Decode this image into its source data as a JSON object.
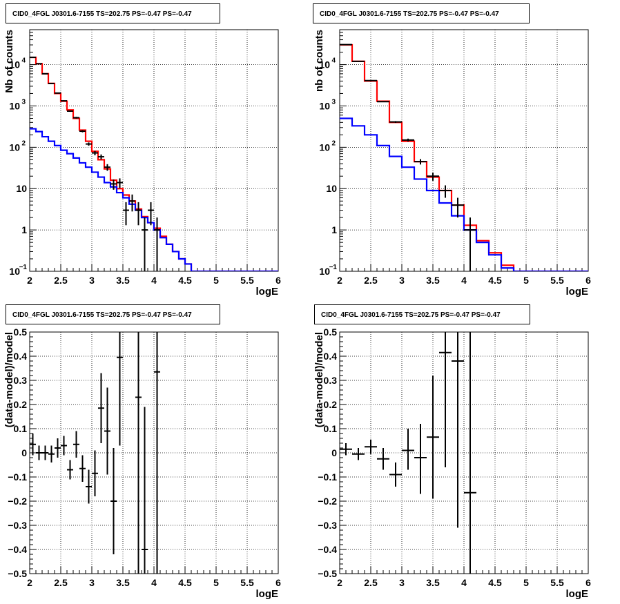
{
  "chart_data": [
    {
      "type": "histogram-step",
      "title": "CID0_4FGL J0301.6-7155 TS=202.75 PS=-0.47 PS=-0.47",
      "xlabel": "logE",
      "ylabel": "Nb of counts",
      "xlim": [
        2,
        6
      ],
      "ylim": [
        0.1,
        70000
      ],
      "yscale": "log",
      "grid": true,
      "x_ticks": [
        "2",
        "2.5",
        "3",
        "3.5",
        "4",
        "4.5",
        "5",
        "5.5",
        "6"
      ],
      "y_ticks": [
        {
          "value": 0.1,
          "label": "10",
          "sup": "−1"
        },
        {
          "value": 1,
          "label": "1",
          "sup": ""
        },
        {
          "value": 10,
          "label": "10",
          "sup": ""
        },
        {
          "value": 100,
          "label": "10",
          "sup": "2"
        },
        {
          "value": 1000,
          "label": "10",
          "sup": "3"
        },
        {
          "value": 10000,
          "label": "10",
          "sup": "4"
        }
      ],
      "bin_edges": [
        2.0,
        2.1,
        2.2,
        2.3,
        2.4,
        2.5,
        2.6,
        2.7,
        2.8,
        2.9,
        3.0,
        3.1,
        3.2,
        3.3,
        3.4,
        3.5,
        3.6,
        3.7,
        3.8,
        3.9,
        4.0,
        4.1,
        4.2,
        4.3,
        4.4,
        4.5,
        4.6,
        4.7,
        4.8,
        4.9,
        5.0,
        5.1,
        5.2,
        5.3,
        5.4,
        5.5,
        5.6,
        5.7,
        5.8,
        5.9,
        6.0
      ],
      "series": [
        {
          "name": "",
          "color": "#ff0000",
          "values": [
            15000,
            10500,
            6000,
            3500,
            2000,
            1300,
            800,
            500,
            260,
            140,
            80,
            50,
            30,
            16,
            10,
            7,
            5,
            3.2,
            2.1,
            1.5,
            1.1,
            0.7,
            0.45,
            0.3,
            0.2,
            0.15,
            0.1,
            0.1,
            0.1,
            0.1,
            0.1,
            0.1,
            0.1,
            0.1,
            0.1,
            0.1,
            0.1,
            0.1,
            0.1,
            0.1
          ]
        },
        {
          "name": "",
          "color": "#0000ff",
          "values": [
            280,
            240,
            180,
            140,
            110,
            85,
            70,
            55,
            42,
            33,
            25,
            19,
            14,
            11,
            8,
            6,
            4.2,
            3.0,
            2.0,
            1.5,
            1.0,
            0.65,
            0.45,
            0.3,
            0.2,
            0.15,
            0.1,
            0.1,
            0.1,
            0.1,
            0.1,
            0.1,
            0.1,
            0.1,
            0.1,
            0.1,
            0.1,
            0.1,
            0.1,
            0.1
          ]
        }
      ],
      "data_points": [
        {
          "x": 2.05,
          "y": 15000,
          "xerr": 0.05,
          "ylo": 14880,
          "yhi": 15120
        },
        {
          "x": 2.15,
          "y": 10500,
          "xerr": 0.05,
          "ylo": 10400,
          "yhi": 10600
        },
        {
          "x": 2.25,
          "y": 6000,
          "xerr": 0.05,
          "ylo": 5920,
          "yhi": 6080
        },
        {
          "x": 2.35,
          "y": 3500,
          "xerr": 0.05,
          "ylo": 3440,
          "yhi": 3560
        },
        {
          "x": 2.45,
          "y": 2050,
          "xerr": 0.05,
          "ylo": 2000,
          "yhi": 2100
        },
        {
          "x": 2.55,
          "y": 1330,
          "xerr": 0.05,
          "ylo": 1290,
          "yhi": 1370
        },
        {
          "x": 2.65,
          "y": 750,
          "xerr": 0.05,
          "ylo": 720,
          "yhi": 780
        },
        {
          "x": 2.75,
          "y": 520,
          "xerr": 0.05,
          "ylo": 495,
          "yhi": 545
        },
        {
          "x": 2.85,
          "y": 245,
          "xerr": 0.05,
          "ylo": 230,
          "yhi": 260
        },
        {
          "x": 2.95,
          "y": 120,
          "xerr": 0.05,
          "ylo": 109,
          "yhi": 131
        },
        {
          "x": 3.05,
          "y": 73,
          "xerr": 0.05,
          "ylo": 64,
          "yhi": 82
        },
        {
          "x": 3.15,
          "y": 59,
          "xerr": 0.05,
          "ylo": 51,
          "yhi": 67
        },
        {
          "x": 3.25,
          "y": 33,
          "xerr": 0.05,
          "ylo": 27,
          "yhi": 39
        },
        {
          "x": 3.35,
          "y": 13,
          "xerr": 0.05,
          "ylo": 9.4,
          "yhi": 16.6
        },
        {
          "x": 3.45,
          "y": 14,
          "xerr": 0.05,
          "ylo": 10.3,
          "yhi": 17.7
        },
        {
          "x": 3.55,
          "y": 3,
          "xerr": 0.05,
          "ylo": 1.3,
          "yhi": 4.7
        },
        {
          "x": 3.65,
          "y": 5,
          "xerr": 0.05,
          "ylo": 2.8,
          "yhi": 7.2
        },
        {
          "x": 3.75,
          "y": 3,
          "xerr": 0.05,
          "ylo": 1.3,
          "yhi": 4.7
        },
        {
          "x": 3.85,
          "y": 1,
          "xerr": 0.05,
          "ylo": 0.1,
          "yhi": 2.0
        },
        {
          "x": 3.95,
          "y": 3,
          "xerr": 0.05,
          "ylo": 1.3,
          "yhi": 4.7
        },
        {
          "x": 4.05,
          "y": 1,
          "xerr": 0.05,
          "ylo": 0.1,
          "yhi": 2.0
        }
      ]
    },
    {
      "type": "histogram-step",
      "title": "CID0_4FGL J0301.6-7155 TS=202.75 PS=-0.47 PS=-0.47",
      "xlabel": "logE",
      "ylabel": "nb of counts",
      "xlim": [
        2,
        6
      ],
      "ylim": [
        0.1,
        70000
      ],
      "yscale": "log",
      "grid": true,
      "x_ticks": [
        "2",
        "2.5",
        "3",
        "3.5",
        "4",
        "4.5",
        "5",
        "5.5",
        "6"
      ],
      "y_ticks": [
        {
          "value": 0.1,
          "label": "10",
          "sup": "−1"
        },
        {
          "value": 1,
          "label": "1",
          "sup": ""
        },
        {
          "value": 10,
          "label": "10",
          "sup": ""
        },
        {
          "value": 100,
          "label": "10",
          "sup": "2"
        },
        {
          "value": 1000,
          "label": "10",
          "sup": "3"
        },
        {
          "value": 10000,
          "label": "10",
          "sup": "4"
        }
      ],
      "bin_edges": [
        2.0,
        2.2,
        2.4,
        2.6,
        2.8,
        3.0,
        3.2,
        3.4,
        3.6,
        3.8,
        4.0,
        4.2,
        4.4,
        4.6,
        4.8,
        5.0,
        5.2,
        5.4,
        5.6,
        5.8,
        6.0
      ],
      "series": [
        {
          "name": "",
          "color": "#ff0000",
          "values": [
            30000,
            12000,
            4000,
            1300,
            400,
            140,
            45,
            19,
            9,
            4,
            1.3,
            0.55,
            0.28,
            0.14,
            0.1,
            0.1,
            0.1,
            0.1,
            0.1,
            0.1
          ]
        },
        {
          "name": "",
          "color": "#0000ff",
          "values": [
            500,
            330,
            200,
            110,
            60,
            33,
            17,
            9,
            4.5,
            2.2,
            1.0,
            0.5,
            0.25,
            0.12,
            0.1,
            0.1,
            0.1,
            0.1,
            0.1,
            0.1
          ]
        }
      ],
      "data_points": [
        {
          "x": 2.1,
          "y": 30500,
          "xerr": 0.1,
          "ylo": 30325,
          "yhi": 30675
        },
        {
          "x": 2.3,
          "y": 12000,
          "xerr": 0.1,
          "ylo": 11890,
          "yhi": 12110
        },
        {
          "x": 2.5,
          "y": 4100,
          "xerr": 0.1,
          "ylo": 4036,
          "yhi": 4164
        },
        {
          "x": 2.7,
          "y": 1270,
          "xerr": 0.1,
          "ylo": 1234,
          "yhi": 1306
        },
        {
          "x": 2.9,
          "y": 410,
          "xerr": 0.1,
          "ylo": 390,
          "yhi": 430
        },
        {
          "x": 3.1,
          "y": 150,
          "xerr": 0.1,
          "ylo": 138,
          "yhi": 162
        },
        {
          "x": 3.3,
          "y": 45,
          "xerr": 0.1,
          "ylo": 38.3,
          "yhi": 51.7
        },
        {
          "x": 3.5,
          "y": 20,
          "xerr": 0.1,
          "ylo": 15.5,
          "yhi": 24.5
        },
        {
          "x": 3.7,
          "y": 9,
          "xerr": 0.1,
          "ylo": 6,
          "yhi": 12
        },
        {
          "x": 3.9,
          "y": 4,
          "xerr": 0.1,
          "ylo": 2,
          "yhi": 6
        },
        {
          "x": 4.1,
          "y": 1,
          "xerr": 0.1,
          "ylo": 0.1,
          "yhi": 2
        }
      ]
    },
    {
      "type": "scatter",
      "title": "CID0_4FGL J0301.6-7155 TS=202.75 PS=-0.47 PS=-0.47",
      "xlabel": "logE",
      "ylabel": "(data-model)/model",
      "xlim": [
        2,
        6
      ],
      "ylim": [
        -0.5,
        0.5
      ],
      "grid": true,
      "x_ticks": [
        "2",
        "2.5",
        "3",
        "3.5",
        "4",
        "4.5",
        "5",
        "5.5",
        "6"
      ],
      "y_ticks": [
        "−0.5",
        "−0.4",
        "−0.3",
        "−0.2",
        "−0.1",
        "0",
        "0.1",
        "0.2",
        "0.3",
        "0.4",
        "0.5"
      ],
      "data_points": [
        {
          "x": 2.05,
          "y": 0.035,
          "xerr": 0.05,
          "ylo": -0.01,
          "yhi": 0.08
        },
        {
          "x": 2.15,
          "y": 0.0,
          "xerr": 0.05,
          "ylo": -0.03,
          "yhi": 0.03
        },
        {
          "x": 2.25,
          "y": 0.0,
          "xerr": 0.05,
          "ylo": -0.03,
          "yhi": 0.03
        },
        {
          "x": 2.35,
          "y": -0.005,
          "xerr": 0.05,
          "ylo": -0.04,
          "yhi": 0.03
        },
        {
          "x": 2.45,
          "y": 0.02,
          "xerr": 0.05,
          "ylo": -0.02,
          "yhi": 0.06
        },
        {
          "x": 2.55,
          "y": 0.03,
          "xerr": 0.05,
          "ylo": -0.01,
          "yhi": 0.07
        },
        {
          "x": 2.65,
          "y": -0.07,
          "xerr": 0.05,
          "ylo": -0.11,
          "yhi": -0.03
        },
        {
          "x": 2.75,
          "y": 0.035,
          "xerr": 0.05,
          "ylo": -0.02,
          "yhi": 0.09
        },
        {
          "x": 2.85,
          "y": -0.065,
          "xerr": 0.05,
          "ylo": -0.12,
          "yhi": -0.01
        },
        {
          "x": 2.95,
          "y": -0.14,
          "xerr": 0.05,
          "ylo": -0.21,
          "yhi": -0.07
        },
        {
          "x": 3.05,
          "y": -0.085,
          "xerr": 0.05,
          "ylo": -0.18,
          "yhi": 0.01
        },
        {
          "x": 3.15,
          "y": 0.185,
          "xerr": 0.05,
          "ylo": 0.04,
          "yhi": 0.33
        },
        {
          "x": 3.25,
          "y": 0.09,
          "xerr": 0.05,
          "ylo": -0.09,
          "yhi": 0.27
        },
        {
          "x": 3.35,
          "y": -0.2,
          "xerr": 0.05,
          "ylo": -0.42,
          "yhi": 0.02
        },
        {
          "x": 3.45,
          "y": 0.395,
          "xerr": 0.05,
          "ylo": 0.03,
          "yhi": 0.5
        },
        {
          "x": 3.75,
          "y": 0.23,
          "xerr": 0.05,
          "ylo": -0.5,
          "yhi": 0.5
        },
        {
          "x": 3.85,
          "y": -0.4,
          "xerr": 0.05,
          "ylo": -0.5,
          "yhi": 0.19
        },
        {
          "x": 4.05,
          "y": 0.335,
          "xerr": 0.05,
          "ylo": -0.5,
          "yhi": 0.5
        }
      ]
    },
    {
      "type": "scatter",
      "title": "CID0_4FGL J0301.6-7155 TS=202.75 PS=-0.47 PS=-0.47",
      "xlabel": "logE",
      "ylabel": "(data-model)/model",
      "xlim": [
        2,
        6
      ],
      "ylim": [
        -0.5,
        0.5
      ],
      "grid": true,
      "x_ticks": [
        "2",
        "2.5",
        "3",
        "3.5",
        "4",
        "4.5",
        "5",
        "5.5",
        "6"
      ],
      "y_ticks": [
        "−0.5",
        "−0.4",
        "−0.3",
        "−0.2",
        "−0.1",
        "0",
        "0.1",
        "0.2",
        "0.3",
        "0.4",
        "0.5"
      ],
      "data_points": [
        {
          "x": 2.1,
          "y": 0.015,
          "xerr": 0.1,
          "ylo": -0.01,
          "yhi": 0.04
        },
        {
          "x": 2.3,
          "y": -0.005,
          "xerr": 0.1,
          "ylo": -0.03,
          "yhi": 0.02
        },
        {
          "x": 2.5,
          "y": 0.025,
          "xerr": 0.1,
          "ylo": -0.005,
          "yhi": 0.055
        },
        {
          "x": 2.7,
          "y": -0.025,
          "xerr": 0.1,
          "ylo": -0.07,
          "yhi": 0.02
        },
        {
          "x": 2.9,
          "y": -0.09,
          "xerr": 0.1,
          "ylo": -0.14,
          "yhi": -0.04
        },
        {
          "x": 3.1,
          "y": 0.01,
          "xerr": 0.1,
          "ylo": -0.07,
          "yhi": 0.1
        },
        {
          "x": 3.3,
          "y": -0.02,
          "xerr": 0.1,
          "ylo": -0.17,
          "yhi": 0.12
        },
        {
          "x": 3.5,
          "y": 0.065,
          "xerr": 0.1,
          "ylo": -0.19,
          "yhi": 0.32
        },
        {
          "x": 3.7,
          "y": 0.415,
          "xerr": 0.1,
          "ylo": -0.06,
          "yhi": 0.5
        },
        {
          "x": 3.9,
          "y": 0.38,
          "xerr": 0.1,
          "ylo": -0.31,
          "yhi": 0.5
        },
        {
          "x": 4.1,
          "y": -0.165,
          "xerr": 0.1,
          "ylo": -0.5,
          "yhi": 0.5
        }
      ]
    }
  ]
}
